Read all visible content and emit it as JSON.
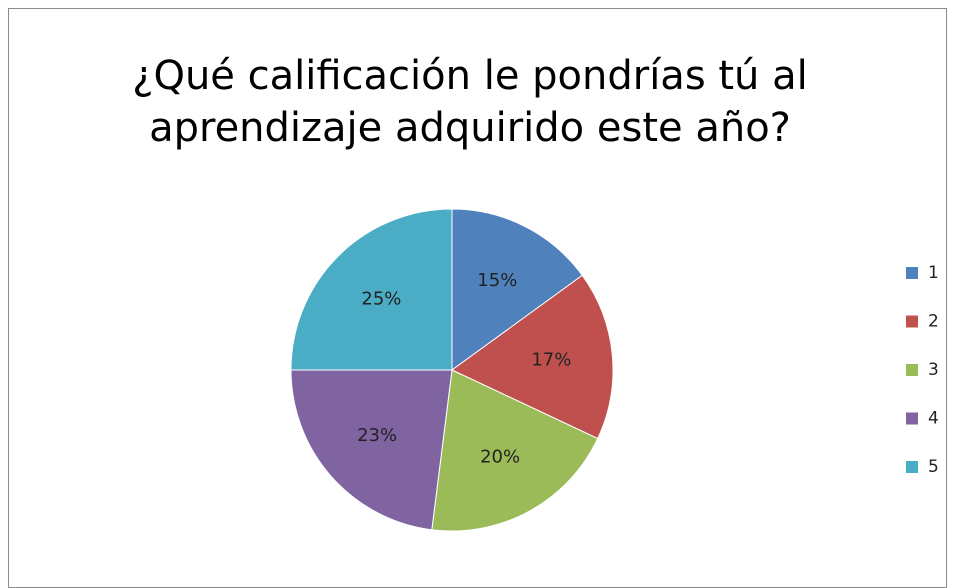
{
  "chart_data": {
    "type": "pie",
    "title": "¿Qué calificación le pondrías tú al aprendizaje adquirido este año?",
    "categories": [
      "1",
      "2",
      "3",
      "4",
      "5"
    ],
    "values": [
      15,
      17,
      20,
      23,
      25
    ],
    "value_labels": [
      "15%",
      "17%",
      "20%",
      "23%",
      "25%"
    ],
    "colors": [
      "#4f81bd",
      "#c0504d",
      "#9bbb59",
      "#8064a2",
      "#4bacc6"
    ],
    "legend": "right"
  }
}
